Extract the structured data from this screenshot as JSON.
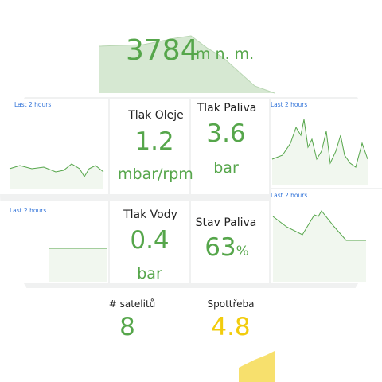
{
  "altitude": {
    "value": "3784",
    "unit": "m n. m."
  },
  "time_ranges": [
    "Last 2 hours",
    "Last 2 hours",
    "Last 2 hours",
    "Last 2 hours"
  ],
  "panels": [
    {
      "title": "Tlak Oleje",
      "value": "1.2",
      "unit": "mbar/rpm"
    },
    {
      "title": "Tlak Paliva",
      "value": "3.6",
      "unit": "bar"
    },
    {
      "title": "Tlak Vody",
      "value": "0.4",
      "unit": "bar"
    },
    {
      "title": "Stav Paliva",
      "value": "63",
      "unit": "%"
    },
    {
      "title": "# satelitů",
      "value": "8"
    },
    {
      "title": "Spottřeba",
      "value": "4.8"
    }
  ]
}
